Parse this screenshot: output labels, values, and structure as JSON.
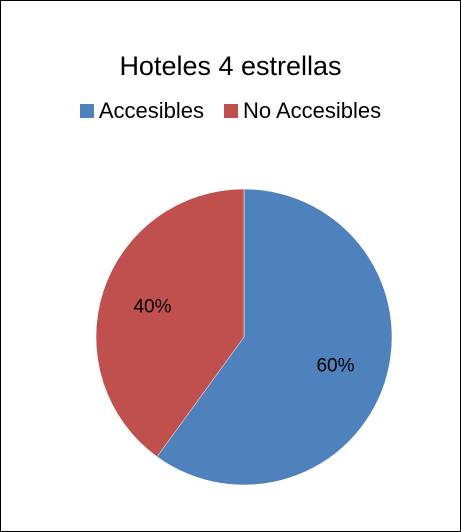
{
  "chart_data": {
    "type": "pie",
    "title": "Hoteles 4 estrellas",
    "categories": [
      "Accesibles",
      "No Accesibles"
    ],
    "values": [
      60,
      40
    ],
    "data_labels": [
      "60%",
      "40%"
    ],
    "colors": [
      "#4f81bd",
      "#c0504d"
    ],
    "legend_position": "top"
  }
}
